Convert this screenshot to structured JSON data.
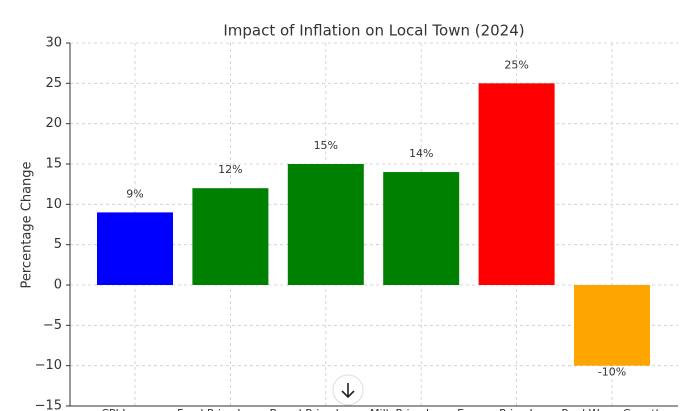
{
  "chart_data": {
    "type": "bar",
    "title": "Impact of Inflation on Local Town (2024)",
    "ylabel": "Percentage Change",
    "categories": [
      "CPI Increase",
      "Food Price Increase",
      "Bread Price Increase",
      "Milk Price Increase",
      "Energy Price Increase",
      "Real Wage Growth"
    ],
    "values": [
      9,
      12,
      15,
      14,
      25,
      -10
    ],
    "value_labels": [
      "9%",
      "12%",
      "15%",
      "14%",
      "25%",
      "-10%"
    ],
    "colors": [
      "#0000ff",
      "#008000",
      "#008000",
      "#008000",
      "#ff0000",
      "#ffa500"
    ],
    "ylim": [
      -15,
      30
    ],
    "yticks": [
      {
        "value": -15,
        "label": "−15"
      },
      {
        "value": -10,
        "label": "−10"
      },
      {
        "value": -5,
        "label": "−5"
      },
      0,
      5,
      10,
      15,
      20,
      25,
      30
    ],
    "grid": true
  }
}
